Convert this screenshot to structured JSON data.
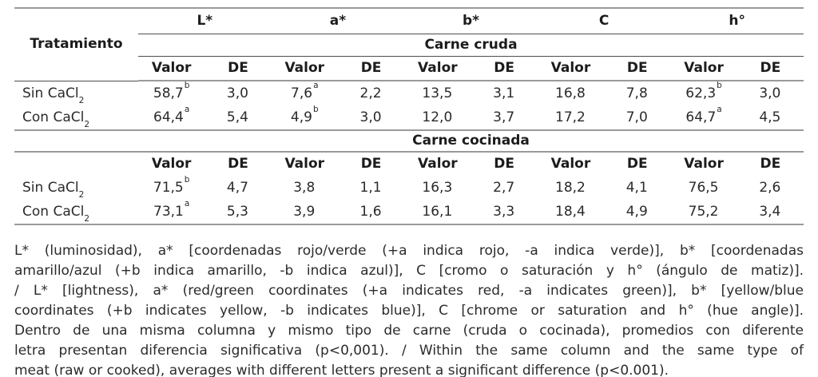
{
  "table": {
    "treatment_header": "Tratamiento",
    "group_headers": [
      "L*",
      "a*",
      "b*",
      "C",
      "h°"
    ],
    "subheader_valor": "Valor",
    "subheader_de": "DE",
    "sections": [
      {
        "title": "Carne cruda",
        "rows": [
          {
            "label": "Sin CaCl",
            "label_sub": "2",
            "cells": [
              {
                "v": "58,7",
                "sup": "b"
              },
              {
                "v": "3,0"
              },
              {
                "v": "7,6",
                "sup": "a"
              },
              {
                "v": "2,2"
              },
              {
                "v": "13,5"
              },
              {
                "v": "3,1"
              },
              {
                "v": "16,8"
              },
              {
                "v": "7,8"
              },
              {
                "v": "62,3",
                "sup": "b"
              },
              {
                "v": "3,0"
              }
            ]
          },
          {
            "label": "Con CaCl",
            "label_sub": "2",
            "cells": [
              {
                "v": "64,4",
                "sup": "a"
              },
              {
                "v": "5,4"
              },
              {
                "v": "4,9",
                "sup": "b"
              },
              {
                "v": "3,0"
              },
              {
                "v": "12,0"
              },
              {
                "v": "3,7"
              },
              {
                "v": "17,2"
              },
              {
                "v": "7,0"
              },
              {
                "v": "64,7",
                "sup": "a"
              },
              {
                "v": "4,5"
              }
            ]
          }
        ]
      },
      {
        "title": "Carne cocinada",
        "rows": [
          {
            "label": "Sin CaCl",
            "label_sub": "2",
            "cells": [
              {
                "v": "71,5",
                "sup": "b"
              },
              {
                "v": "4,7"
              },
              {
                "v": "3,8"
              },
              {
                "v": "1,1"
              },
              {
                "v": "16,3"
              },
              {
                "v": "2,7"
              },
              {
                "v": "18,2"
              },
              {
                "v": "4,1"
              },
              {
                "v": "76,5"
              },
              {
                "v": "2,6"
              }
            ]
          },
          {
            "label": "Con CaCl",
            "label_sub": "2",
            "cells": [
              {
                "v": "73,1",
                "sup": "a"
              },
              {
                "v": "5,3"
              },
              {
                "v": "3,9"
              },
              {
                "v": "1,6"
              },
              {
                "v": "16,1"
              },
              {
                "v": "3,3"
              },
              {
                "v": "18,4"
              },
              {
                "v": "4,9"
              },
              {
                "v": "75,2"
              },
              {
                "v": "3,4"
              }
            ]
          }
        ]
      }
    ]
  },
  "footnote": {
    "lines": [
      "L* (luminosidad), a* [coordenadas rojo/verde (+a indica rojo, -a indica verde)], b* [coordenadas",
      "amarillo/azul (+b indica amarillo, -b indica azul)], C [cromo o saturación y h° (ángulo de matiz)].",
      "/ L* [lightness), a* (red/green coordinates (+a indicates red, -a indicates green)], b* [yellow/blue",
      "coordinates (+b indicates yellow, -b indicates blue)], C [chrome or saturation and h° (hue angle)].",
      "Dentro de una misma columna y mismo tipo de carne (cruda o cocinada), promedios con diferente",
      "letra presentan diferencia significativa (p<0,001). / Within the same column and the same type of",
      "meat (raw or cooked), averages with different letters present a significant difference (p<0.001)."
    ]
  },
  "colors": {
    "background": "#ffffff",
    "text": "#2a2a2a",
    "rule_major": "#9a9a9a",
    "rule_minor": "#4d4d4d"
  }
}
